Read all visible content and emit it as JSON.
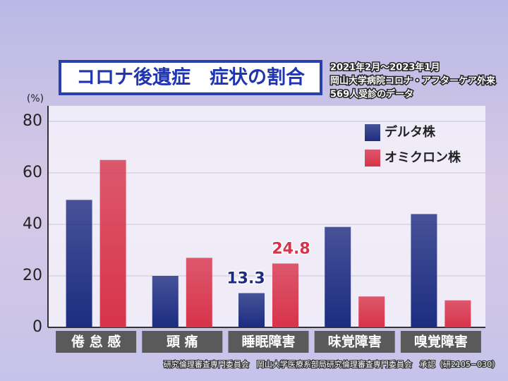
{
  "chart_data": {
    "type": "bar",
    "title": "コロナ後遺症　症状の割合",
    "subtitle": [
      "2021年2月～2023年1月",
      "岡山大学病院コロナ・アフターケア外来",
      "569人受診のデータ"
    ],
    "y_label": "(%)",
    "footnote": "研究倫理審査専門委員会　岡山大学医療系部局研究倫理審査専門委員会　承認（研2105−030）",
    "categories": [
      "倦 怠 感",
      "頭 痛",
      "睡眠障害",
      "味覚障害",
      "嗅覚障害"
    ],
    "series": [
      {
        "name": "デルタ株",
        "color": "#1c2c80",
        "values": [
          49.5,
          20,
          13.3,
          39,
          44
        ],
        "value_labels": [
          null,
          null,
          "13.3",
          null,
          null
        ]
      },
      {
        "name": "オミクロン株",
        "color": "#d8334a",
        "values": [
          65,
          27,
          24.8,
          12,
          10.5
        ],
        "value_labels": [
          null,
          null,
          "24.8",
          null,
          null
        ]
      }
    ],
    "ylim": [
      0,
      80
    ],
    "yticks": [
      0,
      20,
      40,
      60,
      80
    ],
    "grid": true,
    "legend": "top-right"
  }
}
